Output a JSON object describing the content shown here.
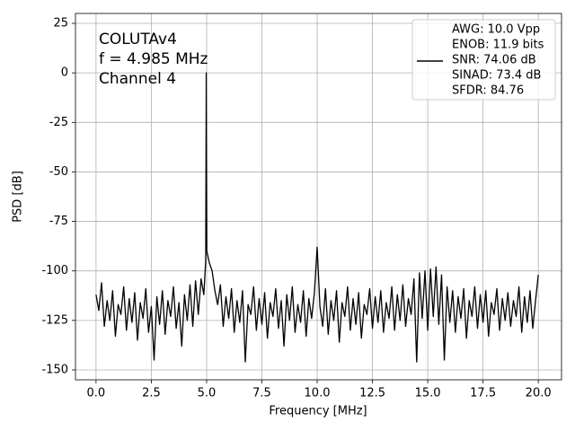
{
  "chart_data": {
    "type": "line",
    "xlabel": "Frequency [MHz]",
    "ylabel": "PSD [dB]",
    "annotations": [
      "COLUTAv4",
      "f = 4.985 MHz",
      "Channel 4"
    ],
    "legend_lines": [
      "AWG: 10.0 Vpp",
      "ENOB: 11.9 bits",
      "SNR: 74.06 dB",
      "SINAD: 73.4 dB",
      "SFDR: 84.76"
    ],
    "legend": "upper right",
    "grid": true,
    "xlim": [
      -0.93,
      21.05
    ],
    "ylim": [
      -155,
      30
    ],
    "xticks": [
      {
        "value": 0,
        "label": "0.0"
      },
      2.5,
      {
        "value": 5,
        "label": "5.0"
      },
      7.5,
      {
        "value": 10,
        "label": "10.0"
      },
      12.5,
      {
        "value": 15,
        "label": "15.0"
      },
      17.5,
      {
        "value": 20,
        "label": "20.0"
      }
    ],
    "yticks": [
      25,
      0,
      -25,
      -50,
      -75,
      -100,
      -125,
      -150
    ],
    "x": [
      0,
      0.125,
      0.25,
      0.375,
      0.5,
      0.625,
      0.75,
      0.875,
      1,
      1.125,
      1.25,
      1.375,
      1.5,
      1.625,
      1.75,
      1.875,
      2,
      2.125,
      2.25,
      2.375,
      2.5,
      2.625,
      2.75,
      2.875,
      3,
      3.125,
      3.25,
      3.375,
      3.5,
      3.625,
      3.75,
      3.875,
      4,
      4.125,
      4.25,
      4.375,
      4.5,
      4.625,
      4.75,
      4.875,
      4.96,
      4.985,
      5.01,
      5.125,
      5.25,
      5.375,
      5.5,
      5.625,
      5.75,
      5.875,
      6,
      6.125,
      6.25,
      6.375,
      6.5,
      6.625,
      6.75,
      6.875,
      7,
      7.125,
      7.25,
      7.375,
      7.5,
      7.625,
      7.75,
      7.875,
      8,
      8.125,
      8.25,
      8.375,
      8.5,
      8.625,
      8.75,
      8.875,
      9,
      9.125,
      9.25,
      9.375,
      9.5,
      9.625,
      9.75,
      9.875,
      10,
      10.125,
      10.25,
      10.375,
      10.5,
      10.625,
      10.75,
      10.875,
      11,
      11.125,
      11.25,
      11.375,
      11.5,
      11.625,
      11.75,
      11.875,
      12,
      12.125,
      12.25,
      12.375,
      12.5,
      12.625,
      12.75,
      12.875,
      13,
      13.125,
      13.25,
      13.375,
      13.5,
      13.625,
      13.75,
      13.875,
      14,
      14.125,
      14.25,
      14.375,
      14.5,
      14.625,
      14.75,
      14.875,
      15,
      15.125,
      15.25,
      15.375,
      15.5,
      15.625,
      15.75,
      15.875,
      16,
      16.125,
      16.25,
      16.375,
      16.5,
      16.625,
      16.75,
      16.875,
      17,
      17.125,
      17.25,
      17.375,
      17.5,
      17.625,
      17.75,
      17.875,
      18,
      18.125,
      18.25,
      18.375,
      18.5,
      18.625,
      18.75,
      18.875,
      19,
      19.125,
      19.25,
      19.375,
      19.5,
      19.625,
      19.75,
      19.875,
      20
    ],
    "series": [
      {
        "color": "#000000",
        "values": [
          -112,
          -120,
          -106,
          -128,
          -115,
          -125,
          -110,
          -133,
          -117,
          -122,
          -108,
          -130,
          -114,
          -126,
          -111,
          -135,
          -116,
          -124,
          -109,
          -131,
          -118,
          -145,
          -113,
          -127,
          -110,
          -132,
          -115,
          -123,
          -108,
          -129,
          -116,
          -138,
          -112,
          -125,
          -107,
          -128,
          -105,
          -122,
          -104,
          -112,
          -95,
          0,
          -90,
          -96,
          -100,
          -110,
          -117,
          -107,
          -128,
          -113,
          -124,
          -109,
          -131,
          -115,
          -126,
          -110,
          -146,
          -117,
          -122,
          -108,
          -130,
          -114,
          -127,
          -111,
          -134,
          -116,
          -123,
          -109,
          -129,
          -115,
          -138,
          -112,
          -125,
          -108,
          -131,
          -117,
          -126,
          -110,
          -133,
          -114,
          -124,
          -111,
          -88,
          -118,
          -128,
          -109,
          -132,
          -115,
          -125,
          -110,
          -136,
          -116,
          -123,
          -108,
          -130,
          -114,
          -127,
          -111,
          -134,
          -117,
          -122,
          -109,
          -129,
          -113,
          -126,
          -110,
          -131,
          -116,
          -124,
          -108,
          -130,
          -112,
          -125,
          -107,
          -128,
          -114,
          -122,
          -104,
          -146,
          -101,
          -124,
          -100,
          -130,
          -99,
          -123,
          -98,
          -127,
          -102,
          -145,
          -108,
          -126,
          -110,
          -131,
          -113,
          -124,
          -109,
          -134,
          -115,
          -123,
          -108,
          -129,
          -112,
          -126,
          -110,
          -133,
          -116,
          -122,
          -109,
          -130,
          -114,
          -125,
          -111,
          -128,
          -115,
          -123,
          -108,
          -131,
          -113,
          -126,
          -110,
          -129,
          -115,
          -102
        ]
      }
    ]
  }
}
